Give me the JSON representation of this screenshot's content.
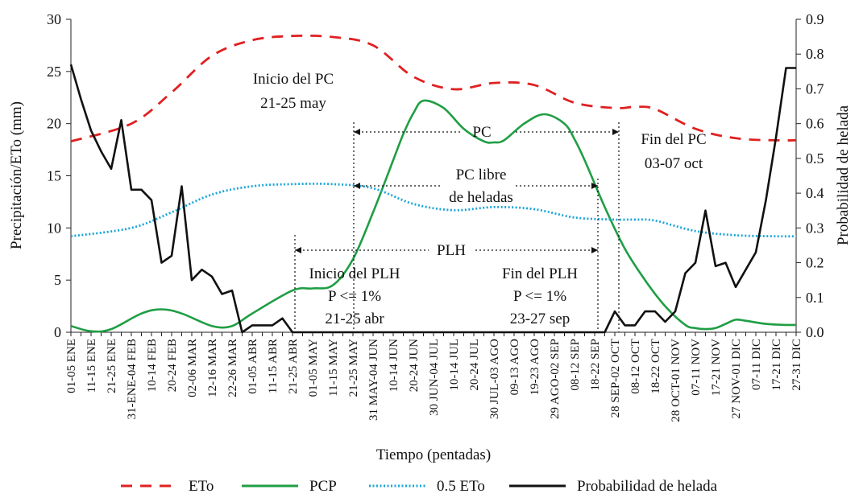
{
  "chart_data": {
    "type": "line",
    "xlabel": "Tiempo (pentadas)",
    "ylabel": "Precipitación/ETo (mm)",
    "y2label": "Probabilidad de helada",
    "ylim": [
      0,
      30
    ],
    "y2lim": [
      0,
      0.9
    ],
    "yticks": [
      "0",
      "5",
      "10",
      "15",
      "20",
      "25",
      "30"
    ],
    "y2ticks": [
      "0.0",
      "0.1",
      "0.2",
      "0.3",
      "0.4",
      "0.5",
      "0.6",
      "0.7",
      "0.8",
      "0.9"
    ],
    "x_count": 73,
    "x_tick_labels": [
      "01-05 ENE",
      "11-15 ENE",
      "21-25 ENE",
      "31-ENE-04 FEB",
      "10-14 FEB",
      "20-24 FEB",
      "02-06 MAR",
      "12-16 MAR",
      "22-26 MAR",
      "01-05 ABR",
      "11-15 ABR",
      "21-25 ABR",
      "01-05 MAY",
      "11-15 MAY",
      "21-25 MAY",
      "31 MAY-04 JUN",
      "10-14 JUN",
      "20-24 JUN",
      "30 JUN-04 JUL",
      "10-14 JUL",
      "20-24 JUL",
      "30 JUL-03 AGO",
      "09-13 AGO",
      "19-23 AGO",
      "29 AGO-02 SEP",
      "08-12 SEP",
      "18-22 SEP",
      "28 SEP-02 OCT",
      "08-12 OCT",
      "18-22 OCT",
      "28 OCT-01 NOV",
      "07-11 NOV",
      "17-21 NOV",
      "27 NOV-01 DIC",
      "07-11 DIC",
      "17-21 DIC",
      "27-31 DIC"
    ],
    "series": [
      {
        "name": "ETo",
        "axis": "left",
        "color": "#e02020",
        "style": "dashed",
        "x": [
          1,
          7,
          11,
          15,
          19,
          23,
          27,
          31,
          35,
          39,
          43,
          47,
          51,
          55,
          57,
          59,
          63,
          67,
          71,
          73
        ],
        "values": [
          18.3,
          20.0,
          23.0,
          26.5,
          28.0,
          28.4,
          28.3,
          27.5,
          24.5,
          23.3,
          23.9,
          23.7,
          22.0,
          21.5,
          21.6,
          21.4,
          19.5,
          18.6,
          18.4,
          18.4
        ]
      },
      {
        "name": "PCP",
        "axis": "left",
        "color": "#1f9e44",
        "style": "solid",
        "x": [
          1,
          3,
          5,
          8,
          10,
          12,
          15,
          17,
          19,
          23,
          25,
          27,
          29,
          31,
          33,
          34,
          35,
          36,
          38,
          40,
          42,
          43,
          44,
          46,
          48,
          50,
          51,
          52,
          54,
          56,
          58,
          60,
          62,
          63,
          64,
          65,
          66,
          67,
          68,
          70,
          72,
          73
        ],
        "values": [
          0.6,
          0.1,
          0.3,
          1.8,
          2.2,
          1.8,
          0.6,
          0.6,
          1.8,
          4.0,
          4.2,
          4.5,
          7.0,
          11.5,
          16.5,
          19.0,
          21.0,
          22.2,
          21.5,
          19.5,
          18.3,
          18.2,
          18.4,
          20.0,
          20.9,
          20.0,
          18.5,
          16.5,
          12.0,
          8.0,
          5.0,
          2.5,
          0.7,
          0.4,
          0.3,
          0.4,
          0.8,
          1.2,
          1.1,
          0.8,
          0.7,
          0.7
        ]
      },
      {
        "name": "0.5 ETo",
        "axis": "left",
        "color": "#1aa6d8",
        "style": "dotted",
        "x": [
          1,
          7,
          11,
          15,
          19,
          23,
          27,
          31,
          35,
          39,
          43,
          47,
          51,
          55,
          57,
          59,
          63,
          67,
          71,
          73
        ],
        "values": [
          9.2,
          10.0,
          11.5,
          13.2,
          14.0,
          14.2,
          14.2,
          13.8,
          12.3,
          11.7,
          12.0,
          11.8,
          11.0,
          10.8,
          10.8,
          10.7,
          9.7,
          9.3,
          9.2,
          9.2
        ]
      },
      {
        "name": "Probabilidad de helada",
        "axis": "right",
        "color": "#111111",
        "style": "solid",
        "x": [
          1,
          2,
          3,
          4,
          5,
          6,
          7,
          8,
          9,
          10,
          11,
          12,
          13,
          14,
          15,
          16,
          17,
          18,
          19,
          20,
          21,
          22,
          23,
          24,
          25,
          26,
          27,
          28,
          29,
          30,
          31,
          32,
          33,
          34,
          35,
          36,
          37,
          38,
          39,
          40,
          41,
          42,
          43,
          44,
          45,
          46,
          47,
          48,
          49,
          50,
          51,
          52,
          53,
          54,
          55,
          56,
          57,
          58,
          59,
          60,
          61,
          62,
          63,
          64,
          65,
          66,
          67,
          68,
          69,
          70,
          71,
          72,
          73
        ],
        "values": [
          0.77,
          0.67,
          0.58,
          0.52,
          0.47,
          0.61,
          0.41,
          0.41,
          0.38,
          0.2,
          0.22,
          0.42,
          0.15,
          0.18,
          0.16,
          0.11,
          0.12,
          0.0,
          0.02,
          0.02,
          0.02,
          0.04,
          0.0,
          0.0,
          0.0,
          0.0,
          0.0,
          0.0,
          0.0,
          0.0,
          0.0,
          0.0,
          0.0,
          0.0,
          0.0,
          0.0,
          0.0,
          0.0,
          0.0,
          0.0,
          0.0,
          0.0,
          0.0,
          0.0,
          0.0,
          0.0,
          0.0,
          0.0,
          0.0,
          0.0,
          0.0,
          0.0,
          0.0,
          0.0,
          0.06,
          0.02,
          0.02,
          0.06,
          0.06,
          0.03,
          0.06,
          0.17,
          0.2,
          0.35,
          0.19,
          0.2,
          0.13,
          0.18,
          0.23,
          0.38,
          0.56,
          0.76,
          0.76
        ]
      }
    ],
    "legend_position": "bottom",
    "annotations": {
      "inicio_pc": [
        "Inicio del PC",
        "21-25 may"
      ],
      "fin_pc": [
        "Fin del PC",
        "03-07 oct"
      ],
      "pc": "PC",
      "pc_libre": [
        "PC libre",
        "de heladas"
      ],
      "plh": "PLH",
      "inicio_plh": [
        "Inicio del PLH",
        "P <= 1%",
        "21-25 abr"
      ],
      "fin_plh": [
        "Fin del PLH",
        "P <= 1%",
        "23-27 sep"
      ]
    }
  }
}
